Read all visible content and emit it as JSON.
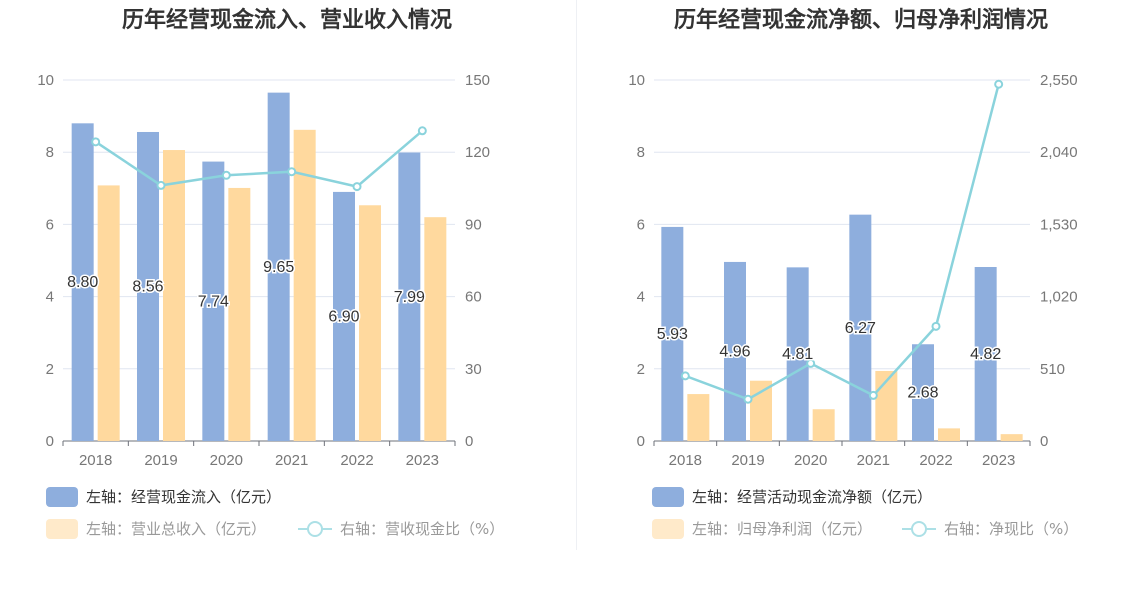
{
  "chart_data": [
    {
      "type": "bar",
      "title": "历年经营现金流入、营业收入情况",
      "categories": [
        "2018",
        "2019",
        "2020",
        "2021",
        "2022",
        "2023"
      ],
      "left_axis": {
        "min": 0,
        "max": 10,
        "ticks": [
          "0",
          "2",
          "4",
          "6",
          "8",
          "10"
        ]
      },
      "right_axis": {
        "min": 0,
        "max": 150,
        "ticks": [
          "0",
          "30",
          "60",
          "90",
          "120",
          "150"
        ]
      },
      "series": [
        {
          "name": "左轴：经营现金流入（亿元）",
          "kind": "bar",
          "axis": "left",
          "color": "#8eaedd",
          "values": [
            8.8,
            8.56,
            7.74,
            9.65,
            6.9,
            7.99
          ],
          "labels": [
            "8.80",
            "8.56",
            "7.74",
            "9.65",
            "6.90",
            "7.99"
          ]
        },
        {
          "name": "左轴：营业总收入（亿元）",
          "kind": "bar",
          "axis": "left",
          "color": "#ffd99e",
          "values": [
            7.08,
            8.06,
            7.01,
            8.62,
            6.53,
            6.2
          ]
        },
        {
          "name": "右轴：营收现金比（%）",
          "kind": "line",
          "axis": "right",
          "color": "#8ad3dc",
          "values": [
            124.3,
            106.2,
            110.4,
            111.9,
            105.7,
            128.9
          ]
        }
      ],
      "legend_position": "bottom-left",
      "grid": true
    },
    {
      "type": "bar",
      "title": "历年经营现金流净额、归母净利润情况",
      "categories": [
        "2018",
        "2019",
        "2020",
        "2021",
        "2022",
        "2023"
      ],
      "left_axis": {
        "min": 0,
        "max": 10,
        "ticks": [
          "0",
          "2",
          "4",
          "6",
          "8",
          "10"
        ]
      },
      "right_axis": {
        "min": 0,
        "max": 2550,
        "ticks": [
          "0",
          "510",
          "1,020",
          "1,530",
          "2,040",
          "2,550"
        ]
      },
      "series": [
        {
          "name": "左轴：经营活动现金流净额（亿元）",
          "kind": "bar",
          "axis": "left",
          "color": "#8eaedd",
          "values": [
            5.93,
            4.96,
            4.81,
            6.27,
            2.68,
            4.82
          ],
          "labels": [
            "5.93",
            "4.96",
            "4.81",
            "6.27",
            "2.68",
            "4.82"
          ]
        },
        {
          "name": "左轴：归母净利润（亿元）",
          "kind": "bar",
          "axis": "left",
          "color": "#ffd99e",
          "values": [
            1.3,
            1.67,
            0.88,
            1.94,
            0.35,
            0.19
          ]
        },
        {
          "name": "右轴：净现比（%）",
          "kind": "line",
          "axis": "right",
          "color": "#8ad3dc",
          "values": [
            460,
            295,
            548,
            322,
            810,
            2520
          ]
        }
      ],
      "legend_position": "bottom-left",
      "grid": true
    }
  ]
}
